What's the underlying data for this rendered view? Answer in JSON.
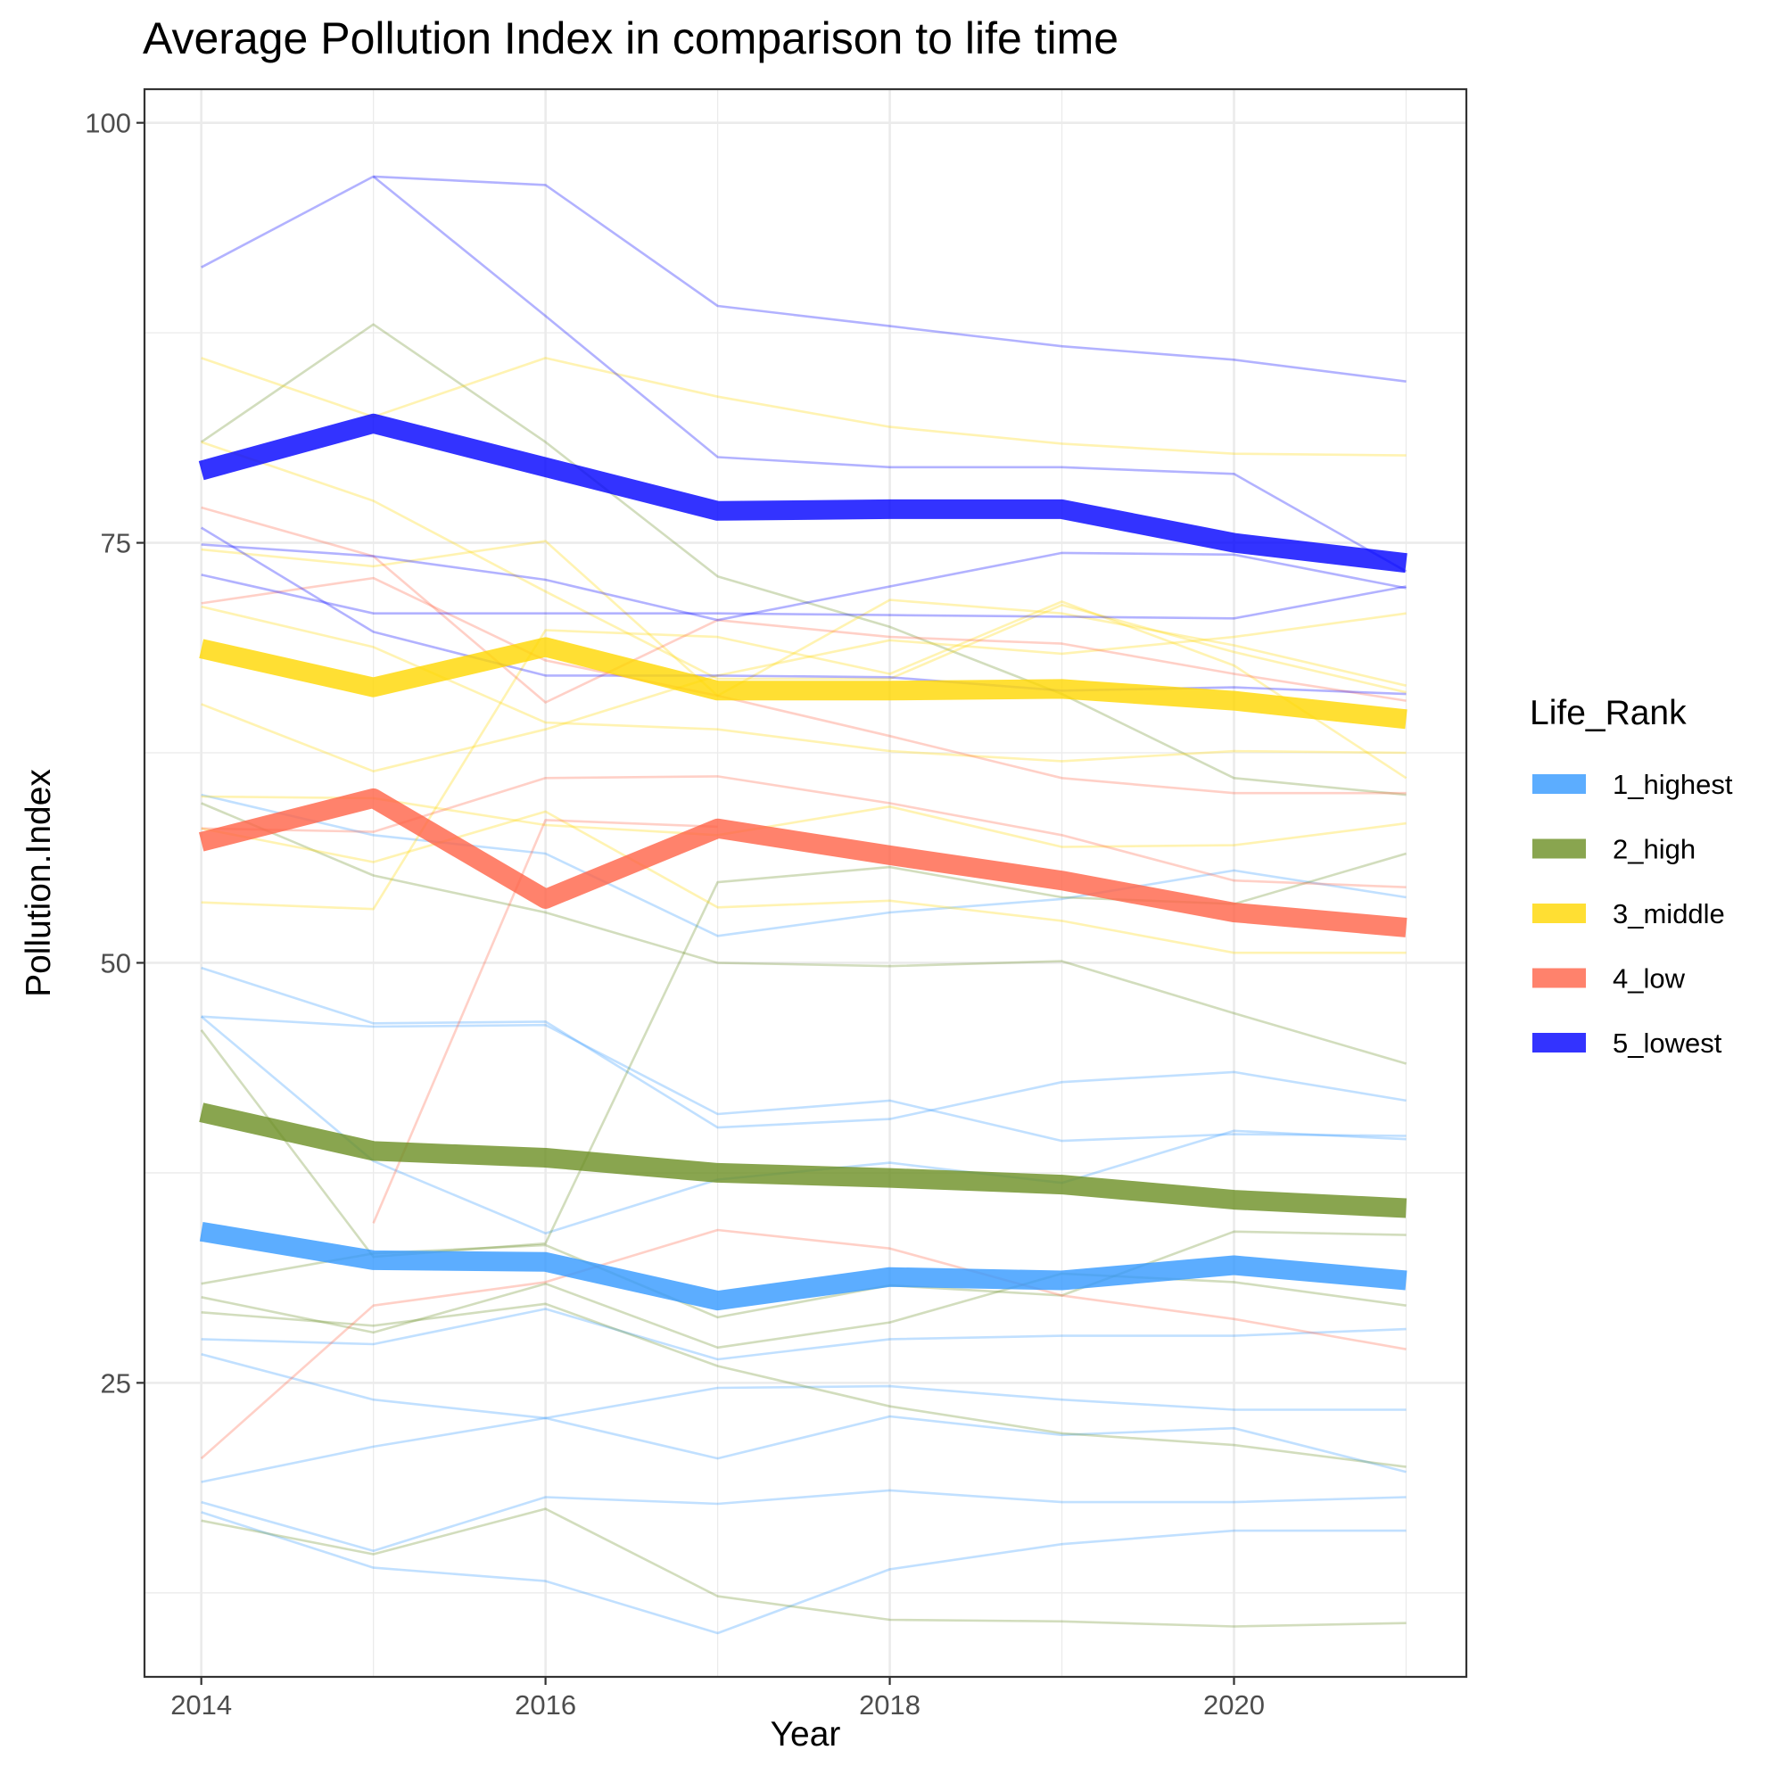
{
  "chart_data": {
    "type": "line",
    "title": "Average Pollution Index in comparison to life time",
    "xlabel": "Year",
    "ylabel": "Pollution.Index",
    "xlim": [
      2013.67,
      2021.35
    ],
    "ylim": [
      7.5,
      102
    ],
    "x_ticks": [
      2014,
      2016,
      2018,
      2020
    ],
    "y_ticks": [
      25,
      50,
      75,
      100
    ],
    "y_minor_ticks": [
      12.5,
      37.5,
      62.5,
      87.5
    ],
    "grid": true,
    "x": [
      2014,
      2015,
      2016,
      2017,
      2018,
      2019,
      2020,
      2021
    ],
    "legend": {
      "title": "Life_Rank",
      "position": "right",
      "entries": [
        {
          "label": "1_highest",
          "color": "#3399FF"
        },
        {
          "label": "2_high",
          "color": "#6B8E23"
        },
        {
          "label": "3_middle",
          "color": "#FFD700"
        },
        {
          "label": "4_low",
          "color": "#FF6347"
        },
        {
          "label": "5_lowest",
          "color": "#0000FF"
        }
      ]
    },
    "series": [
      {
        "name": "1_highest",
        "values": [
          34.0,
          32.3,
          32.2,
          29.9,
          31.3,
          31.1,
          32.0,
          31.1
        ]
      },
      {
        "name": "2_high",
        "values": [
          41.1,
          38.8,
          38.4,
          37.5,
          37.2,
          36.8,
          35.9,
          35.4
        ]
      },
      {
        "name": "3_middle",
        "values": [
          68.7,
          66.4,
          68.8,
          66.2,
          66.2,
          66.3,
          65.6,
          64.5
        ]
      },
      {
        "name": "4_low",
        "values": [
          57.2,
          59.8,
          53.8,
          58.0,
          56.4,
          54.9,
          53.0,
          52.1
        ]
      },
      {
        "name": "5_lowest",
        "values": [
          79.3,
          82.1,
          79.5,
          76.9,
          77.0,
          77.0,
          75.0,
          73.8
        ]
      }
    ],
    "thin_series": [
      {
        "group": "1_highest",
        "values": [
          60.0,
          57.6,
          56.5,
          51.6,
          53.0,
          53.8,
          55.5,
          53.9
        ]
      },
      {
        "group": "1_highest",
        "values": [
          49.7,
          46.4,
          46.5,
          40.2,
          40.7,
          42.9,
          43.5,
          41.8
        ]
      },
      {
        "group": "1_highest",
        "values": [
          46.8,
          46.2,
          46.3,
          41.0,
          41.8,
          39.4,
          39.8,
          39.7
        ]
      },
      {
        "group": "1_highest",
        "values": [
          46.8,
          38.2,
          33.9,
          37.1,
          38.1,
          36.9,
          40.0,
          39.5
        ]
      },
      {
        "group": "1_highest",
        "values": [
          27.6,
          27.3,
          29.4,
          26.4,
          27.6,
          27.8,
          27.8,
          28.2
        ]
      },
      {
        "group": "1_highest",
        "values": [
          26.7,
          24.0,
          22.9,
          24.7,
          24.8,
          24.0,
          23.4,
          23.4
        ]
      },
      {
        "group": "1_highest",
        "values": [
          19.1,
          21.2,
          22.9,
          20.5,
          23.0,
          21.9,
          22.3,
          19.7
        ]
      },
      {
        "group": "1_highest",
        "values": [
          17.9,
          15.0,
          18.2,
          17.8,
          18.6,
          17.9,
          17.9,
          18.2
        ]
      },
      {
        "group": "1_highest",
        "values": [
          17.3,
          14.0,
          13.2,
          10.1,
          13.9,
          15.4,
          16.2,
          16.2
        ]
      },
      {
        "group": "2_high",
        "values": [
          81.0,
          88.0,
          81.0,
          73.0,
          70.0,
          66.0,
          61.0,
          60.0
        ]
      },
      {
        "group": "2_high",
        "values": [
          59.5,
          55.2,
          53.0,
          50.0,
          49.8,
          50.1,
          47.0,
          44.0
        ]
      },
      {
        "group": "2_high",
        "values": [
          46.0,
          32.5,
          33.3,
          54.8,
          55.7,
          53.9,
          53.5,
          56.5
        ]
      },
      {
        "group": "2_high",
        "values": [
          30.9,
          32.7,
          33.2,
          28.9,
          30.8,
          30.2,
          34.0,
          33.8
        ]
      },
      {
        "group": "2_high",
        "values": [
          30.1,
          28.0,
          30.9,
          27.1,
          28.6,
          31.5,
          31.0,
          29.6
        ]
      },
      {
        "group": "2_high",
        "values": [
          29.2,
          28.4,
          29.7,
          26.0,
          23.6,
          22.0,
          21.3,
          20.0
        ]
      },
      {
        "group": "2_high",
        "values": [
          16.8,
          14.8,
          17.5,
          12.3,
          10.9,
          10.8,
          10.5,
          10.7
        ]
      },
      {
        "group": "3_middle",
        "values": [
          86.0,
          82.5,
          86.0,
          83.7,
          81.9,
          80.9,
          80.3,
          80.2
        ]
      },
      {
        "group": "3_middle",
        "values": [
          81.0,
          77.5,
          72.1,
          66.9,
          66.9,
          71.3,
          68.5,
          66.1
        ]
      },
      {
        "group": "3_middle",
        "values": [
          74.6,
          73.6,
          75.1,
          65.9,
          71.6,
          70.8,
          68.9,
          66.5
        ]
      },
      {
        "group": "3_middle",
        "values": [
          71.2,
          68.8,
          64.3,
          63.9,
          62.6,
          62.0,
          62.6,
          62.5
        ]
      },
      {
        "group": "3_middle",
        "values": [
          65.4,
          61.4,
          63.9,
          67.1,
          69.2,
          68.4,
          69.4,
          70.8
        ]
      },
      {
        "group": "3_middle",
        "values": [
          59.9,
          59.8,
          58.2,
          57.6,
          59.3,
          56.9,
          57.0,
          58.3
        ]
      },
      {
        "group": "3_middle",
        "values": [
          58.0,
          56.0,
          59.0,
          53.3,
          53.7,
          52.5,
          50.6,
          50.6
        ]
      },
      {
        "group": "3_middle",
        "values": [
          53.6,
          53.2,
          69.8,
          69.4,
          67.2,
          71.5,
          67.7,
          61.0
        ]
      },
      {
        "group": "4_low",
        "values": [
          77.1,
          74.2,
          65.5,
          70.4,
          69.4,
          69.0,
          67.2,
          65.6
        ]
      },
      {
        "group": "4_low",
        "values": [
          71.4,
          72.9,
          68.0,
          65.9,
          63.5,
          61.0,
          60.1,
          60.1
        ]
      },
      {
        "group": "4_low",
        "values": [
          58.0,
          57.8,
          61.0,
          61.1,
          59.5,
          57.6,
          54.9,
          54.5
        ]
      },
      {
        "group": "4_low",
        "values": [
          20.5,
          29.6,
          31.0,
          34.1,
          33.0,
          30.2,
          28.8,
          27.0
        ]
      },
      {
        "group": "4_low",
        "values": [
          null,
          34.5,
          58.5,
          58.1,
          null,
          null,
          null,
          null
        ]
      },
      {
        "group": "5_lowest",
        "values": [
          91.4,
          96.8,
          96.3,
          89.1,
          87.9,
          86.7,
          85.9,
          84.6
        ]
      },
      {
        "group": "5_lowest",
        "values": [
          75.9,
          69.7,
          67.1,
          67.1,
          67.0,
          66.2,
          66.4,
          66.0
        ]
      },
      {
        "group": "5_lowest",
        "values": [
          74.9,
          74.2,
          72.8,
          70.4,
          72.4,
          74.4,
          74.3,
          72.3
        ]
      },
      {
        "group": "5_lowest",
        "values": [
          73.1,
          70.8,
          70.8,
          70.8,
          70.7,
          70.6,
          70.5,
          72.4
        ]
      },
      {
        "group": "5_lowest",
        "values": [
          null,
          96.8,
          88.5,
          80.1,
          79.5,
          79.5,
          79.1,
          73.3
        ]
      }
    ]
  }
}
